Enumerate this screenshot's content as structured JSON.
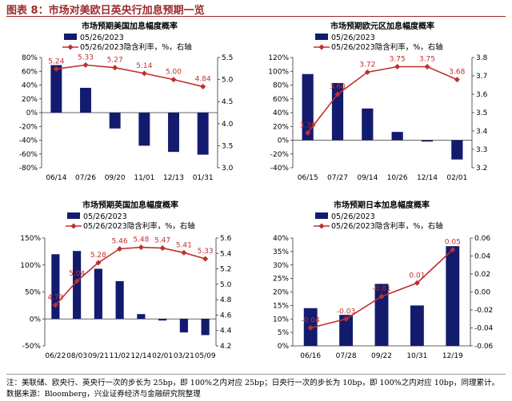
{
  "header": {
    "title": "图表 8：市场对美欧日英央行加息预期一览"
  },
  "footer": {
    "note": "注：美联储、欧央行、英央行一次的步长为 25bp，即 100%之内对应 25bp；日央行一次的步长为 10bp，即 100%之内对应 10bp，同理累计。",
    "source": "数据来源：Bloomberg，兴业证券经济与金融研究院整理"
  },
  "colors": {
    "bar": "#131b6e",
    "line": "#c0302b",
    "accent": "#9c2a2a"
  },
  "chart_data": [
    {
      "type": "bar",
      "title": "市场预期美国加息幅度概率",
      "categories": [
        "06/14",
        "07/26",
        "09/20",
        "11/01",
        "12/13",
        "01/31"
      ],
      "series": [
        {
          "name": "05/26/2023",
          "type": "bar",
          "axis": "left",
          "values": [
            0.69,
            0.36,
            -0.23,
            -0.48,
            -0.57,
            -0.61
          ]
        },
        {
          "name": "05/26/2023隐含利率，%，右轴",
          "type": "line",
          "axis": "right",
          "values": [
            5.24,
            5.33,
            5.27,
            5.14,
            5.0,
            4.84
          ]
        }
      ],
      "left_axis": {
        "ticks": [
          "80%",
          "60%",
          "40%",
          "20%",
          "0%",
          "-20%",
          "-40%",
          "-60%",
          "-80%"
        ],
        "min": -0.8,
        "max": 0.8
      },
      "right_axis": {
        "ticks": [
          "5.5",
          "5.0",
          "4.5",
          "4.0",
          "3.5",
          "3.0"
        ],
        "min": 3.0,
        "max": 5.5
      },
      "legend": "top-center"
    },
    {
      "type": "bar",
      "title": "市场预期欧元区加息幅度概率",
      "categories": [
        "06/15",
        "07/27",
        "09/14",
        "10/26",
        "12/14",
        "02/01"
      ],
      "series": [
        {
          "name": "05/26/2023",
          "type": "bar",
          "axis": "left",
          "values": [
            0.96,
            0.83,
            0.46,
            0.12,
            -0.02,
            -0.28
          ]
        },
        {
          "name": "05/26/2023隐含利率，%，右轴",
          "type": "line",
          "axis": "right",
          "values": [
            3.39,
            3.6,
            3.72,
            3.75,
            3.75,
            3.68
          ]
        }
      ],
      "left_axis": {
        "ticks": [
          "120%",
          "100%",
          "80%",
          "60%",
          "40%",
          "20%",
          "0%",
          "-20%",
          "-40%"
        ],
        "min": -0.4,
        "max": 1.2
      },
      "right_axis": {
        "ticks": [
          "3.8",
          "3.7",
          "3.6",
          "3.5",
          "3.4",
          "3.3",
          "3.2"
        ],
        "min": 3.2,
        "max": 3.8
      },
      "legend": "top-center"
    },
    {
      "type": "bar",
      "title": "市场预期英国加息幅度概率",
      "categories": [
        "06/22",
        "08/03",
        "09/21",
        "11/02",
        "12/14",
        "02/01",
        "03/21",
        "05/09"
      ],
      "series": [
        {
          "name": "05/26/2023",
          "type": "bar",
          "axis": "left",
          "values": [
            1.2,
            1.26,
            0.93,
            0.7,
            0.09,
            -0.03,
            -0.25,
            -0.3
          ]
        },
        {
          "name": "05/26/2023隐含利率，%，右轴",
          "type": "line",
          "axis": "right",
          "values": [
            4.73,
            5.04,
            5.28,
            5.46,
            5.48,
            5.47,
            5.41,
            5.33
          ]
        }
      ],
      "left_axis": {
        "ticks": [
          "150%",
          "100%",
          "50%",
          "0%",
          "-50%"
        ],
        "min": -0.5,
        "max": 1.5
      },
      "right_axis": {
        "ticks": [
          "5.6",
          "5.4",
          "5.2",
          "5.0",
          "4.8",
          "4.6",
          "4.4",
          "4.2"
        ],
        "min": 4.2,
        "max": 5.6
      },
      "data_labels": [
        "4.73",
        "5.04",
        "5.28",
        "5.46",
        "5.48",
        "5.47",
        "5.41",
        "5.33"
      ],
      "legend": "top-center"
    },
    {
      "type": "bar",
      "title": "市场预期日本加息幅度概率",
      "categories": [
        "06/16",
        "07/28",
        "09/22",
        "10/31",
        "12/19"
      ],
      "series": [
        {
          "name": "05/26/2023",
          "type": "bar",
          "axis": "left",
          "values": [
            0.14,
            0.115,
            0.23,
            0.15,
            0.37
          ]
        },
        {
          "name": "05/26/2023隐含利率，%，右轴",
          "type": "line",
          "axis": "right",
          "values": [
            -0.04,
            -0.03,
            -0.005,
            0.01,
            0.047
          ]
        }
      ],
      "left_axis": {
        "ticks": [
          "40%",
          "35%",
          "30%",
          "25%",
          "20%",
          "15%",
          "10%",
          "5%",
          "0%"
        ],
        "min": 0,
        "max": 0.4
      },
      "right_axis": {
        "ticks": [
          "0.06",
          "0.04",
          "0.02",
          "0.00",
          "-0.02",
          "-0.04",
          "-0.06"
        ],
        "min": -0.06,
        "max": 0.06
      },
      "data_labels": [
        "-0.04",
        "-0.03",
        "-0.01",
        "0.01",
        "0.05"
      ],
      "legend": "top-center"
    }
  ]
}
